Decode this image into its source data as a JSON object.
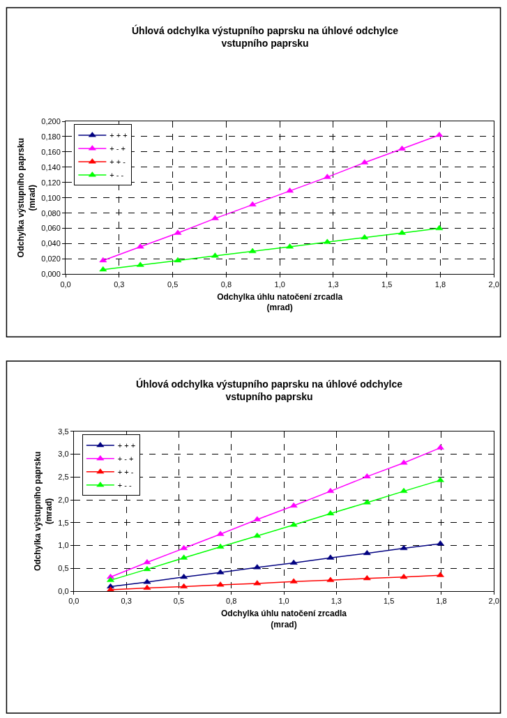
{
  "chart_data": [
    {
      "type": "line",
      "title": "Úhlová odchylka výstupního paprsku na úhlové odchylce\nvstupního paprsku",
      "xlabel": "Odchylka úhlu natočení zrcadla\n(mrad)",
      "ylabel": "Odchylka výstupního paprsku\n(mrad)",
      "x": [
        0.175,
        0.349,
        0.524,
        0.698,
        0.873,
        1.047,
        1.222,
        1.396,
        1.571,
        1.745
      ],
      "series": [
        {
          "name": "+ + +",
          "color": "#000080",
          "values": [
            null,
            null,
            null,
            null,
            null,
            null,
            null,
            null,
            null,
            null
          ]
        },
        {
          "name": "+ - +",
          "color": "#ff00ff",
          "values": [
            0.018,
            0.036,
            0.054,
            0.073,
            0.091,
            0.109,
            0.127,
            0.146,
            0.164,
            0.182
          ]
        },
        {
          "name": "+ + -",
          "color": "#ff0000",
          "values": [
            null,
            null,
            null,
            null,
            null,
            null,
            null,
            null,
            null,
            null
          ]
        },
        {
          "name": "+ - -",
          "color": "#00ff00",
          "values": [
            0.006,
            0.012,
            0.018,
            0.024,
            0.03,
            0.036,
            0.042,
            0.048,
            0.054,
            0.06
          ]
        }
      ],
      "xlim": [
        0,
        2.0
      ],
      "xticks": [
        {
          "value": 0,
          "label": "0,0"
        },
        {
          "value": 0.25,
          "label": "0,3"
        },
        {
          "value": 0.5,
          "label": "0,5"
        },
        {
          "value": 0.75,
          "label": "0,8"
        },
        {
          "value": 1.0,
          "label": "1,0"
        },
        {
          "value": 1.25,
          "label": "1,3"
        },
        {
          "value": 1.5,
          "label": "1,5"
        },
        {
          "value": 1.75,
          "label": "1,8"
        },
        {
          "value": 2.0,
          "label": "2,0"
        }
      ],
      "ylim": [
        0,
        0.2
      ],
      "yticks": [
        {
          "value": 0,
          "label": "0,000"
        },
        {
          "value": 0.02,
          "label": "0,020"
        },
        {
          "value": 0.04,
          "label": "0,040"
        },
        {
          "value": 0.06,
          "label": "0,060"
        },
        {
          "value": 0.08,
          "label": "0,080"
        },
        {
          "value": 0.1,
          "label": "0,100"
        },
        {
          "value": 0.12,
          "label": "0,120"
        },
        {
          "value": 0.14,
          "label": "0,140"
        },
        {
          "value": 0.16,
          "label": "0,160"
        },
        {
          "value": 0.18,
          "label": "0,180"
        },
        {
          "value": 0.2,
          "label": "0,200"
        }
      ],
      "grid": true,
      "legend": "top left",
      "marker": "triangle",
      "line_style": "solid"
    },
    {
      "type": "line",
      "title": "Úhlová odchylka výstupního paprsku na úhlové odchylce\nvstupního paprsku",
      "xlabel": "Odchylka úhlu natočení zrcadla\n(mrad)",
      "ylabel": "Odchylka výstupního paprsku\n(mrad)",
      "x": [
        0.175,
        0.349,
        0.524,
        0.698,
        0.873,
        1.047,
        1.222,
        1.396,
        1.571,
        1.745
      ],
      "series": [
        {
          "name": "+ + +",
          "color": "#000080",
          "values": [
            0.1,
            0.2,
            0.31,
            0.41,
            0.52,
            0.62,
            0.73,
            0.83,
            0.94,
            1.04
          ]
        },
        {
          "name": "+ - +",
          "color": "#ff00ff",
          "values": [
            0.31,
            0.63,
            0.94,
            1.25,
            1.57,
            1.87,
            2.19,
            2.51,
            2.81,
            3.14
          ]
        },
        {
          "name": "+ + -",
          "color": "#ff0000",
          "values": [
            0.03,
            0.07,
            0.1,
            0.14,
            0.17,
            0.21,
            0.24,
            0.28,
            0.31,
            0.35
          ]
        },
        {
          "name": "+ - -",
          "color": "#00ff00",
          "values": [
            0.24,
            0.48,
            0.73,
            0.97,
            1.21,
            1.45,
            1.7,
            1.94,
            2.19,
            2.43
          ]
        }
      ],
      "xlim": [
        0,
        2.0
      ],
      "xticks": [
        {
          "value": 0,
          "label": "0,0"
        },
        {
          "value": 0.25,
          "label": "0,3"
        },
        {
          "value": 0.5,
          "label": "0,5"
        },
        {
          "value": 0.75,
          "label": "0,8"
        },
        {
          "value": 1.0,
          "label": "1,0"
        },
        {
          "value": 1.25,
          "label": "1,3"
        },
        {
          "value": 1.5,
          "label": "1,5"
        },
        {
          "value": 1.75,
          "label": "1,8"
        },
        {
          "value": 2.0,
          "label": "2,0"
        }
      ],
      "ylim": [
        0,
        3.5
      ],
      "yticks": [
        {
          "value": 0,
          "label": "0,0"
        },
        {
          "value": 0.5,
          "label": "0,5"
        },
        {
          "value": 1.0,
          "label": "1,0"
        },
        {
          "value": 1.5,
          "label": "1,5"
        },
        {
          "value": 2.0,
          "label": "2,0"
        },
        {
          "value": 2.5,
          "label": "2,5"
        },
        {
          "value": 3.0,
          "label": "3,0"
        },
        {
          "value": 3.5,
          "label": "3,5"
        }
      ],
      "grid": true,
      "legend": "top left",
      "marker": "triangle",
      "line_style": "solid"
    }
  ]
}
